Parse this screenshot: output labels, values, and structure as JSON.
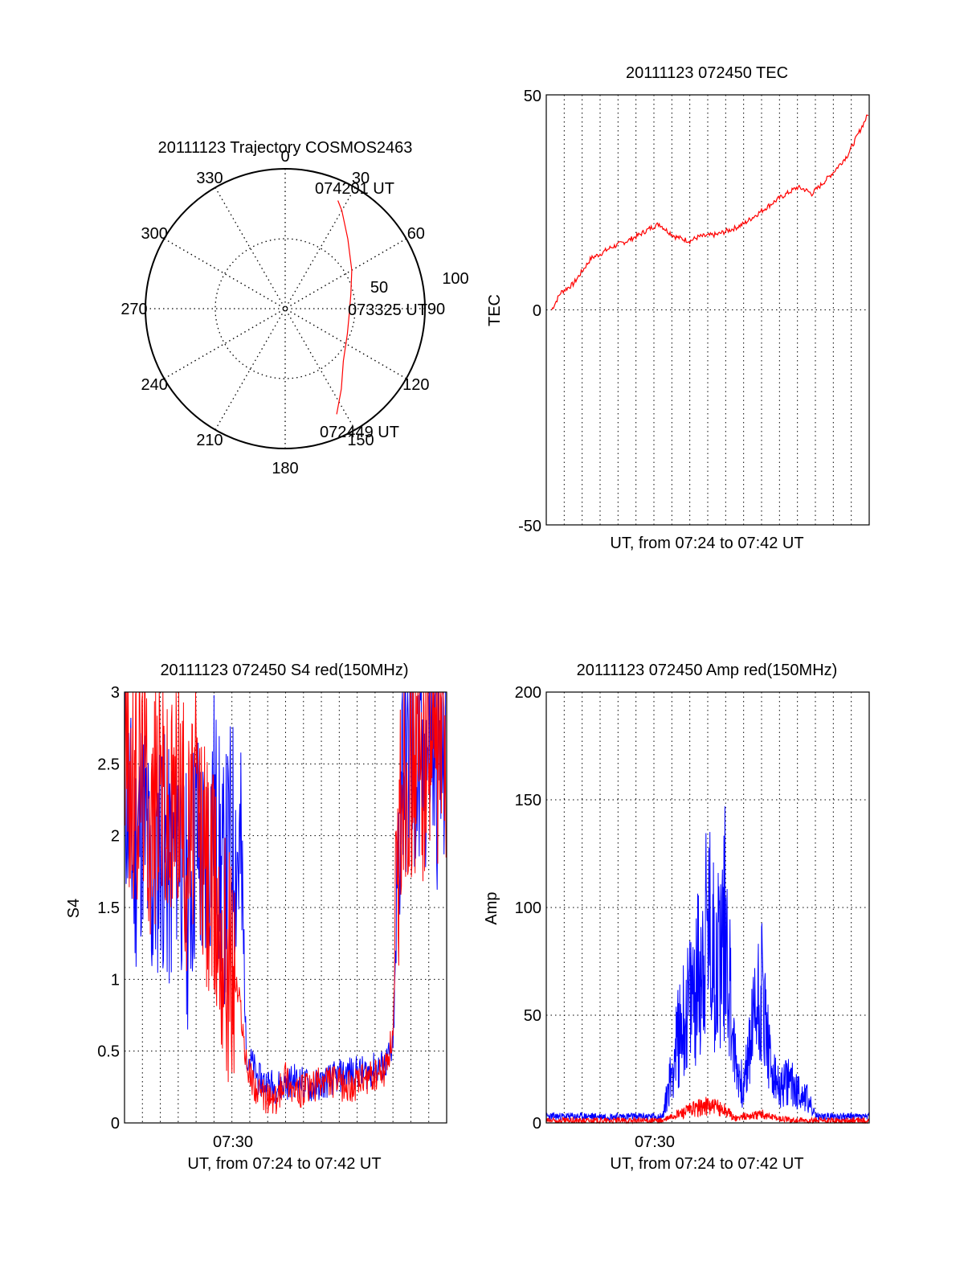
{
  "colors": {
    "red": "#ff0000",
    "blue": "#0000ff",
    "axis": "#000000",
    "grid": "#000000"
  },
  "chart_data": [
    {
      "type": "polar",
      "title": "20111123 Trajectory COSMOS2463",
      "angle_labels": [
        "0",
        "30",
        "60",
        "90",
        "120",
        "150",
        "180",
        "210",
        "240",
        "270",
        "300",
        "330"
      ],
      "radius_labels": [
        "50",
        "100"
      ],
      "time_labels": {
        "start": "072449 UT",
        "mid": "073325 UT",
        "end": "074201 UT"
      },
      "trajectory": [
        {
          "az": 154,
          "zen": 84
        },
        {
          "az": 145,
          "zen": 70
        },
        {
          "az": 132,
          "zen": 56
        },
        {
          "az": 112,
          "zen": 48
        },
        {
          "az": 95,
          "zen": 46
        },
        {
          "az": 78,
          "zen": 48
        },
        {
          "az": 60,
          "zen": 55
        },
        {
          "az": 42,
          "zen": 67
        },
        {
          "az": 30,
          "zen": 81
        },
        {
          "az": 26,
          "zen": 86
        }
      ],
      "zenith_range": [
        0,
        100
      ]
    },
    {
      "type": "line",
      "title": "20111123 072450 TEC",
      "xlabel": "UT, from 07:24 to 07:42 UT",
      "ylabel": "TEC",
      "yticks": [
        "50",
        "0",
        "-50"
      ],
      "ylim": [
        -50,
        50
      ],
      "xlim": [
        0,
        18
      ],
      "series": [
        {
          "color": "red",
          "points": [
            [
              0.3,
              0
            ],
            [
              0.8,
              4
            ],
            [
              1.5,
              6
            ],
            [
              2.0,
              9
            ],
            [
              2.5,
              12
            ],
            [
              3.0,
              13
            ],
            [
              3.6,
              14.5
            ],
            [
              4.5,
              16
            ],
            [
              5.2,
              17.5
            ],
            [
              5.8,
              19
            ],
            [
              6.3,
              20
            ],
            [
              6.7,
              18.5
            ],
            [
              7.2,
              17
            ],
            [
              8.0,
              16
            ],
            [
              8.5,
              17
            ],
            [
              9.5,
              17.5
            ],
            [
              10.5,
              19
            ],
            [
              11.0,
              20
            ],
            [
              12.0,
              23
            ],
            [
              13.0,
              26
            ],
            [
              14.0,
              28.5
            ],
            [
              14.4,
              28
            ],
            [
              14.8,
              27
            ],
            [
              15.3,
              29
            ],
            [
              16.0,
              32
            ],
            [
              16.8,
              36
            ],
            [
              17.4,
              41
            ],
            [
              18.0,
              46
            ]
          ]
        }
      ]
    },
    {
      "type": "line",
      "title": "20111123 072450 S4 red(150MHz)",
      "xlabel": "UT, from 07:24 to 07:42 UT",
      "ylabel": "S4",
      "xtick": "07:30",
      "yticks": [
        "3",
        "2.5",
        "2",
        "1.5",
        "1",
        "0.5",
        "0"
      ],
      "ylim": [
        0,
        3
      ],
      "xlim": [
        0,
        18
      ],
      "series": [
        {
          "color": "blue",
          "points": [
            [
              0,
              2.5
            ],
            [
              0.5,
              1.8
            ],
            [
              1,
              2.2
            ],
            [
              1.5,
              1.6
            ],
            [
              2,
              2.0
            ],
            [
              2.5,
              1.7
            ],
            [
              3,
              2.1
            ],
            [
              3.5,
              1.5
            ],
            [
              4,
              2.0
            ],
            [
              4.5,
              1.7
            ],
            [
              5,
              2.2
            ],
            [
              5.5,
              1.6
            ],
            [
              6,
              2.0
            ],
            [
              6.5,
              1.8
            ],
            [
              6.8,
              0.5
            ],
            [
              7.5,
              0.3
            ],
            [
              8.5,
              0.25
            ],
            [
              9.5,
              0.3
            ],
            [
              10.5,
              0.25
            ],
            [
              11.5,
              0.3
            ],
            [
              12.5,
              0.35
            ],
            [
              13.5,
              0.35
            ],
            [
              14.5,
              0.4
            ],
            [
              15.0,
              0.5
            ],
            [
              15.5,
              2.6
            ],
            [
              16,
              2.5
            ],
            [
              16.5,
              2.3
            ],
            [
              17,
              2.7
            ],
            [
              17.5,
              2.5
            ],
            [
              18,
              2.6
            ]
          ]
        },
        {
          "color": "red",
          "points": [
            [
              0,
              2.8
            ],
            [
              0.5,
              2.2
            ],
            [
              1,
              2.6
            ],
            [
              1.5,
              2.1
            ],
            [
              2,
              2.5
            ],
            [
              2.5,
              2.0
            ],
            [
              3,
              2.4
            ],
            [
              3.5,
              1.9
            ],
            [
              4,
              2.2
            ],
            [
              4.5,
              1.8
            ],
            [
              5,
              1.6
            ],
            [
              5.5,
              1.3
            ],
            [
              6,
              1.1
            ],
            [
              6.5,
              0.8
            ],
            [
              6.8,
              0.4
            ],
            [
              7.5,
              0.2
            ],
            [
              8.5,
              0.15
            ],
            [
              9.0,
              0.35
            ],
            [
              9.5,
              0.2
            ],
            [
              10.5,
              0.25
            ],
            [
              11.5,
              0.3
            ],
            [
              12.5,
              0.25
            ],
            [
              13.5,
              0.3
            ],
            [
              14.5,
              0.35
            ],
            [
              15.0,
              0.6
            ],
            [
              15.5,
              2.5
            ],
            [
              16,
              2.6
            ],
            [
              16.5,
              2.4
            ],
            [
              17,
              2.8
            ],
            [
              17.5,
              2.6
            ],
            [
              18,
              2.7
            ]
          ]
        }
      ]
    },
    {
      "type": "line",
      "title": "20111123 072450 Amp red(150MHz)",
      "xlabel": "UT, from 07:24 to 07:42 UT",
      "ylabel": "Amp",
      "xtick": "07:30",
      "yticks": [
        "200",
        "150",
        "100",
        "50",
        "0"
      ],
      "ylim": [
        0,
        200
      ],
      "xlim": [
        0,
        18
      ],
      "series": [
        {
          "color": "blue",
          "points": [
            [
              0,
              3
            ],
            [
              3,
              3
            ],
            [
              6.5,
              3
            ],
            [
              7.0,
              25
            ],
            [
              7.5,
              45
            ],
            [
              8.0,
              55
            ],
            [
              8.5,
              70
            ],
            [
              9.0,
              90
            ],
            [
              9.5,
              75
            ],
            [
              10.0,
              95
            ],
            [
              10.5,
              30
            ],
            [
              11.0,
              15
            ],
            [
              11.5,
              45
            ],
            [
              12.0,
              65
            ],
            [
              12.5,
              25
            ],
            [
              13.0,
              15
            ],
            [
              13.5,
              20
            ],
            [
              14.0,
              15
            ],
            [
              14.5,
              12
            ],
            [
              15.0,
              3
            ],
            [
              18.0,
              3
            ]
          ]
        },
        {
          "color": "red",
          "points": [
            [
              0,
              1
            ],
            [
              6.5,
              1
            ],
            [
              7.0,
              3
            ],
            [
              8.0,
              6
            ],
            [
              9.0,
              8
            ],
            [
              10.0,
              6
            ],
            [
              10.5,
              2
            ],
            [
              11.0,
              3
            ],
            [
              12.0,
              4
            ],
            [
              13.0,
              2
            ],
            [
              14.0,
              1
            ],
            [
              18.0,
              1
            ]
          ]
        }
      ]
    }
  ]
}
